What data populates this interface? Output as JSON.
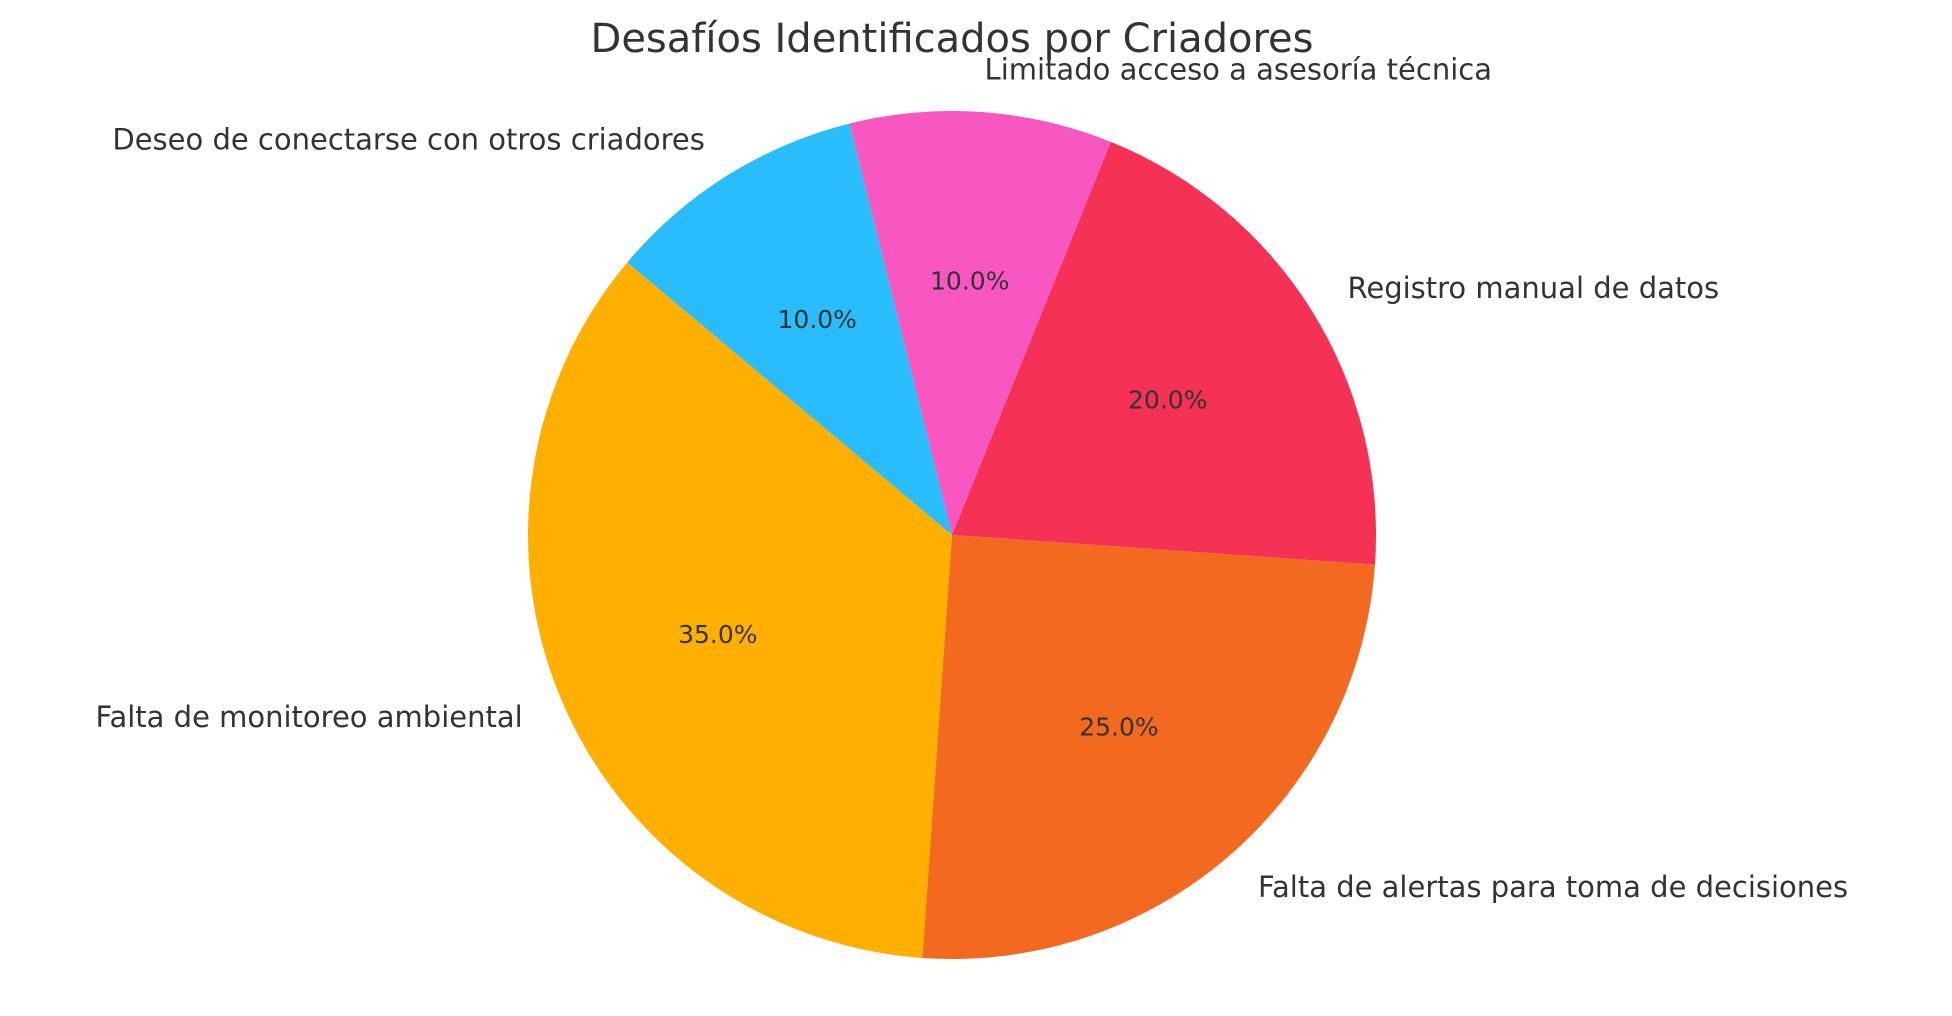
{
  "chart_data": {
    "type": "pie",
    "title": "Desafíos Identificados por Criadores",
    "categories": [
      "Falta de monitoreo ambiental",
      "Falta de alertas para toma de decisiones",
      "Registro manual de datos",
      "Limitado acceso a asesoría técnica",
      "Deseo de conectarse con otros criadores"
    ],
    "values": [
      35,
      25,
      20,
      10,
      10
    ],
    "percent_labels": [
      "35.0%",
      "25.0%",
      "20.0%",
      "10.0%",
      "10.0%"
    ],
    "colors": [
      "#FFAF00",
      "#F46920",
      "#F53255",
      "#F857C1",
      "#29BDFD"
    ],
    "start_angle_deg": 140,
    "direction": "counterclockwise",
    "legend": "none",
    "grid": false
  }
}
